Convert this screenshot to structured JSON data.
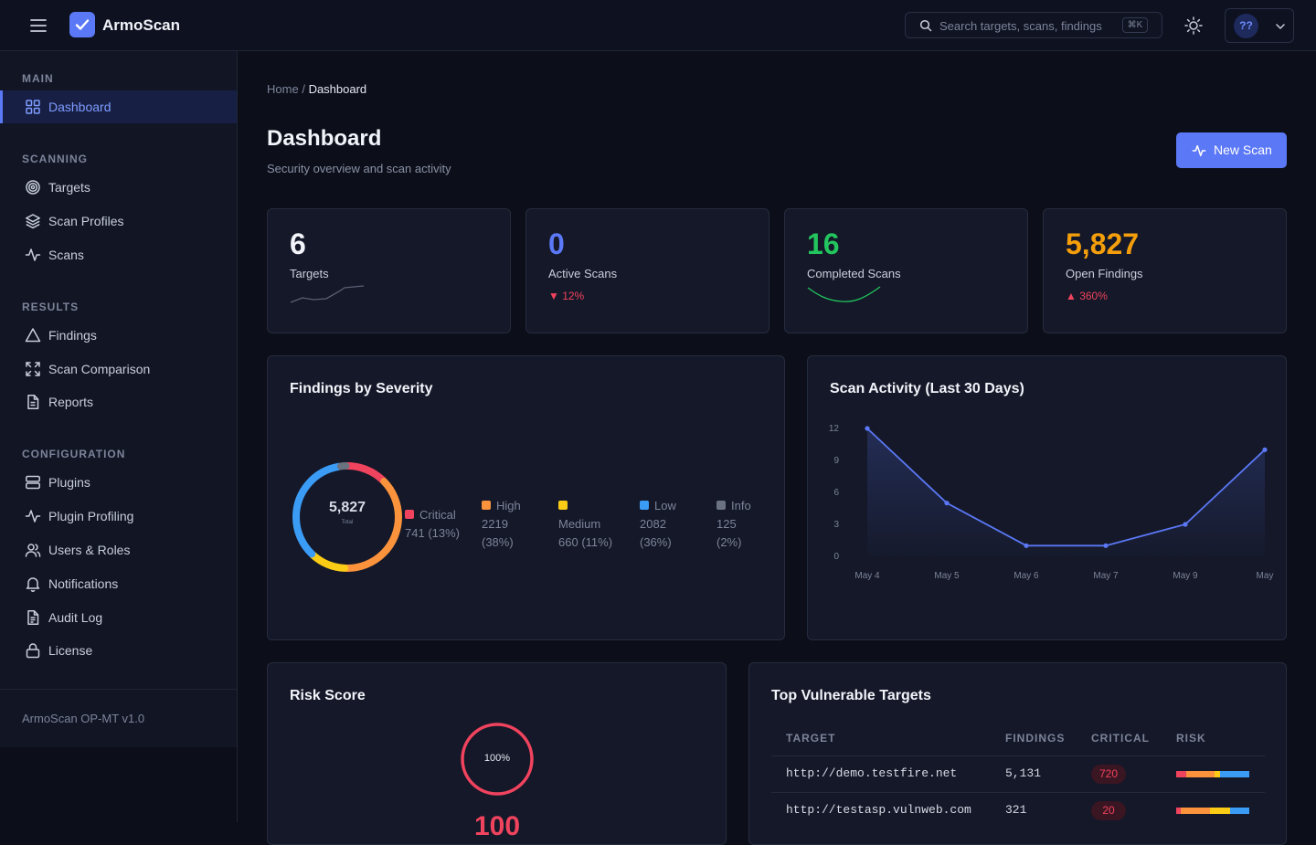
{
  "app": {
    "name": "ArmoScan"
  },
  "search": {
    "placeholder": "Search targets, scans, findings",
    "shortcut": "⌘K"
  },
  "user": {
    "initials": "??"
  },
  "sidebar": {
    "sections": [
      {
        "title": "MAIN",
        "items": [
          {
            "label": "Dashboard",
            "icon": "grid-icon",
            "active": true
          }
        ]
      },
      {
        "title": "SCANNING",
        "items": [
          {
            "label": "Targets",
            "icon": "target-icon"
          },
          {
            "label": "Scan Profiles",
            "icon": "layers-icon"
          },
          {
            "label": "Scans",
            "icon": "activity-icon"
          }
        ]
      },
      {
        "title": "RESULTS",
        "items": [
          {
            "label": "Findings",
            "icon": "warning-triangle-icon"
          },
          {
            "label": "Scan Comparison",
            "icon": "compare-arrows-icon"
          },
          {
            "label": "Reports",
            "icon": "document-icon"
          }
        ]
      },
      {
        "title": "CONFIGURATION",
        "items": [
          {
            "label": "Plugins",
            "icon": "server-icon"
          },
          {
            "label": "Plugin Profiling",
            "icon": "activity-icon"
          },
          {
            "label": "Users & Roles",
            "icon": "users-icon"
          },
          {
            "label": "Notifications",
            "icon": "bell-icon"
          },
          {
            "label": "Audit Log",
            "icon": "log-document-icon"
          },
          {
            "label": "License",
            "icon": "lock-icon"
          }
        ]
      }
    ],
    "version": "ArmoScan OP-MT v1.0"
  },
  "breadcrumb": {
    "home": "Home",
    "separator": "/",
    "current": "Dashboard"
  },
  "page": {
    "title": "Dashboard",
    "subtitle": "Security overview and scan activity",
    "new_scan_label": "New Scan"
  },
  "stats": [
    {
      "value": "6",
      "label": "Targets",
      "color": "#f2f4fa",
      "trend": "sparkline"
    },
    {
      "value": "0",
      "label": "Active Scans",
      "color": "#5b78f6",
      "delta": "▼ 12%",
      "delta_color": "#f0435e"
    },
    {
      "value": "16",
      "label": "Completed Scans",
      "color": "#22c55e",
      "trend": "sparkline"
    },
    {
      "value": "5,827",
      "label": "Open Findings",
      "color": "#f59e0b",
      "delta": "▲ 360%",
      "delta_color": "#f0435e"
    }
  ],
  "severity": {
    "title": "Findings by Severity",
    "total": "5,827",
    "total_label": "Total",
    "items": [
      {
        "name": "Critical",
        "count": "741",
        "pct": "(13%)",
        "value": 741,
        "color": "#f0435e"
      },
      {
        "name": "High",
        "count": "2219",
        "pct": "(38%)",
        "value": 2219,
        "color": "#fb923c"
      },
      {
        "name": "Medium",
        "count": "660",
        "pct": "(11%)",
        "value": 660,
        "color": "#facc15"
      },
      {
        "name": "Low",
        "count": "2082",
        "pct": "(36%)",
        "value": 2082,
        "color": "#3b9cf6"
      },
      {
        "name": "Info",
        "count": "125",
        "pct": "(2%)",
        "value": 125,
        "color": "#6b7280"
      }
    ]
  },
  "chart_data": {
    "type": "area",
    "title": "Scan Activity (Last 30 Days)",
    "x": [
      "May 4",
      "May 5",
      "May 6",
      "May 7",
      "May 9",
      "May"
    ],
    "series": [
      {
        "values": [
          12,
          5,
          1,
          1,
          3,
          10
        ]
      }
    ],
    "ylim": [
      0,
      12
    ],
    "yticks": [
      0,
      3,
      6,
      9,
      12
    ],
    "color": "#5b78f6"
  },
  "risk": {
    "title": "Risk Score",
    "percent": "100%",
    "score": "100",
    "color": "#f0435e"
  },
  "top_targets": {
    "title": "Top Vulnerable Targets",
    "columns": [
      "TARGET",
      "FINDINGS",
      "CRITICAL",
      "RISK"
    ],
    "rows": [
      {
        "target": "http://demo.testfire.net",
        "findings": "5,131",
        "critical": "720",
        "risk_mix": [
          {
            "color": "#f0435e",
            "share": 0.14
          },
          {
            "color": "#fb923c",
            "share": 0.38
          },
          {
            "color": "#facc15",
            "share": 0.08
          },
          {
            "color": "#3b9cf6",
            "share": 0.4
          }
        ]
      },
      {
        "target": "http://testasp.vulnweb.com",
        "findings": "321",
        "critical": "20",
        "risk_mix": [
          {
            "color": "#f0435e",
            "share": 0.06
          },
          {
            "color": "#fb923c",
            "share": 0.4
          },
          {
            "color": "#facc15",
            "share": 0.28
          },
          {
            "color": "#3b9cf6",
            "share": 0.26
          }
        ]
      }
    ]
  }
}
